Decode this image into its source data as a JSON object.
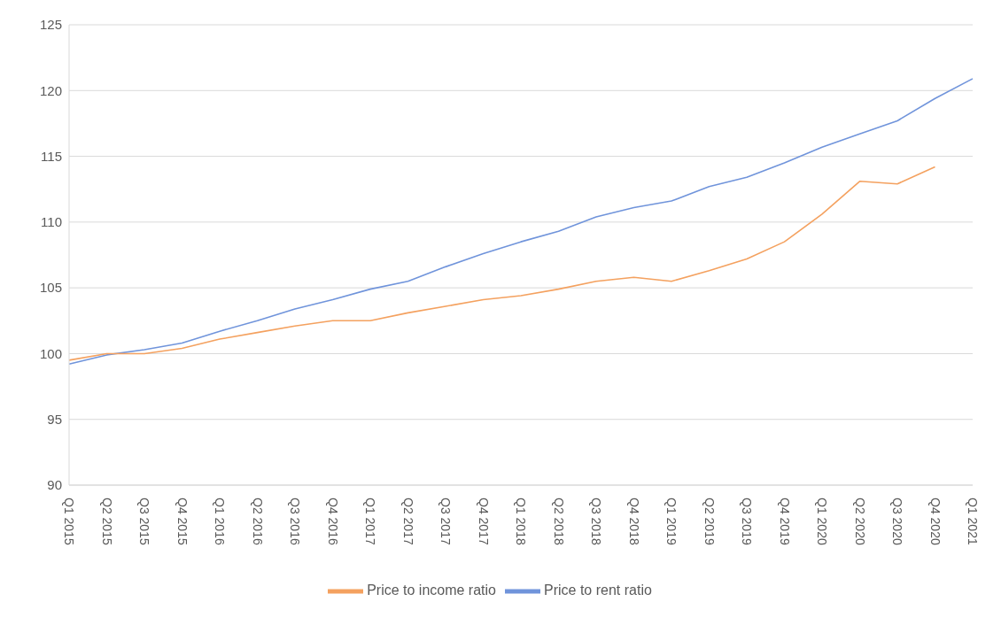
{
  "chart_data": {
    "type": "line",
    "categories": [
      "Q1 2015",
      "Q2 2015",
      "Q3 2015",
      "Q4 2015",
      "Q1 2016",
      "Q2 2016",
      "Q3 2016",
      "Q4 2016",
      "Q1 2017",
      "Q2 2017",
      "Q3 2017",
      "Q4 2017",
      "Q1 2018",
      "Q2 2018",
      "Q3 2018",
      "Q4 2018",
      "Q1 2019",
      "Q2 2019",
      "Q3 2019",
      "Q4 2019",
      "Q1 2020",
      "Q2 2020",
      "Q3 2020",
      "Q4 2020",
      "Q1 2021"
    ],
    "series": [
      {
        "name": "Price to rent ratio",
        "color": "#7094db",
        "values": [
          99.2,
          99.9,
          100.3,
          100.8,
          101.7,
          102.5,
          103.4,
          104.1,
          104.9,
          105.5,
          106.6,
          107.6,
          108.5,
          109.3,
          110.4,
          111.1,
          111.6,
          112.7,
          113.4,
          114.5,
          115.7,
          116.7,
          117.7,
          119.4,
          120.9
        ]
      },
      {
        "name": "Price to income ratio",
        "color": "#f4a15f",
        "values": [
          99.5,
          100.0,
          100.0,
          100.4,
          101.1,
          101.6,
          102.1,
          102.5,
          102.5,
          103.1,
          103.6,
          104.1,
          104.4,
          104.9,
          105.5,
          105.8,
          105.5,
          106.3,
          107.2,
          108.5,
          110.6,
          113.1,
          112.9,
          114.2,
          null
        ]
      }
    ],
    "ylim": [
      90,
      125
    ],
    "yticks": [
      90,
      95,
      100,
      105,
      110,
      115,
      120,
      125
    ],
    "grid": "y",
    "legend": "bottom",
    "marker": "none",
    "line_style": "solid"
  }
}
